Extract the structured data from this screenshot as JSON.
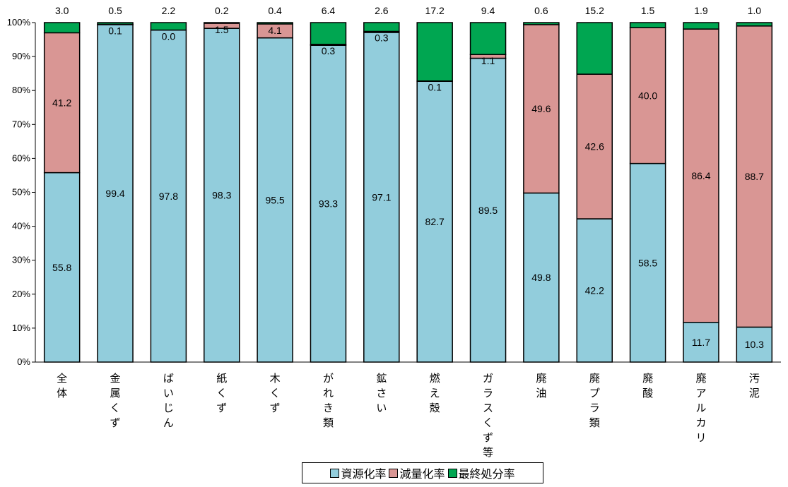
{
  "chart_data": {
    "type": "bar",
    "stacked": true,
    "percent": true,
    "categories": [
      "全体",
      "金属くず",
      "ばいじん",
      "紙くず",
      "木くず",
      "がれき類",
      "鉱さい",
      "燃え殻",
      "ガラスくず等",
      "廃油",
      "廃プラ類",
      "廃酸",
      "廃アルカリ",
      "汚泥"
    ],
    "series": [
      {
        "name": "資源化率",
        "color": "#92CDDC",
        "values": [
          55.8,
          99.4,
          97.8,
          98.3,
          95.5,
          93.3,
          97.1,
          82.7,
          89.5,
          49.8,
          42.2,
          58.5,
          11.7,
          10.3
        ],
        "labels": [
          "55.8",
          "99.4",
          "97.8",
          "98.3",
          "95.5",
          "93.3",
          "97.1",
          "82.7",
          "89.5",
          "49.8",
          "42.2",
          "58.5",
          "11.7",
          "10.3"
        ]
      },
      {
        "name": "減量化率",
        "color": "#D99694",
        "values": [
          41.2,
          0.1,
          0.0,
          1.5,
          4.1,
          0.3,
          0.3,
          0.1,
          1.1,
          49.6,
          42.6,
          40.0,
          86.4,
          88.7
        ],
        "labels": [
          "41.2",
          "0.1",
          "0.0",
          "1.5",
          "4.1",
          "0.3",
          "0.3",
          "0.1",
          "1.1",
          "49.6",
          "42.6",
          "40.0",
          "86.4",
          "88.7"
        ]
      },
      {
        "name": "最終処分率",
        "color": "#00A651",
        "values": [
          3.0,
          0.5,
          2.2,
          0.2,
          0.4,
          6.4,
          2.6,
          17.2,
          9.4,
          0.6,
          15.2,
          1.5,
          1.9,
          1.0
        ],
        "labels": [
          "3.0",
          "0.5",
          "2.2",
          "0.2",
          "0.4",
          "6.4",
          "2.6",
          "17.2",
          "9.4",
          "0.6",
          "15.2",
          "1.5",
          "1.9",
          "1.0"
        ]
      }
    ],
    "ylim": [
      0,
      100
    ],
    "yticks": [
      "0%",
      "10%",
      "20%",
      "30%",
      "40%",
      "50%",
      "60%",
      "70%",
      "80%",
      "90%",
      "100%"
    ],
    "legend_position": "bottom",
    "grid": false
  },
  "legend": {
    "items": [
      {
        "label": "資源化率",
        "color": "#92CDDC"
      },
      {
        "label": "減量化率",
        "color": "#D99694"
      },
      {
        "label": "最終処分率",
        "color": "#00A651"
      }
    ]
  }
}
